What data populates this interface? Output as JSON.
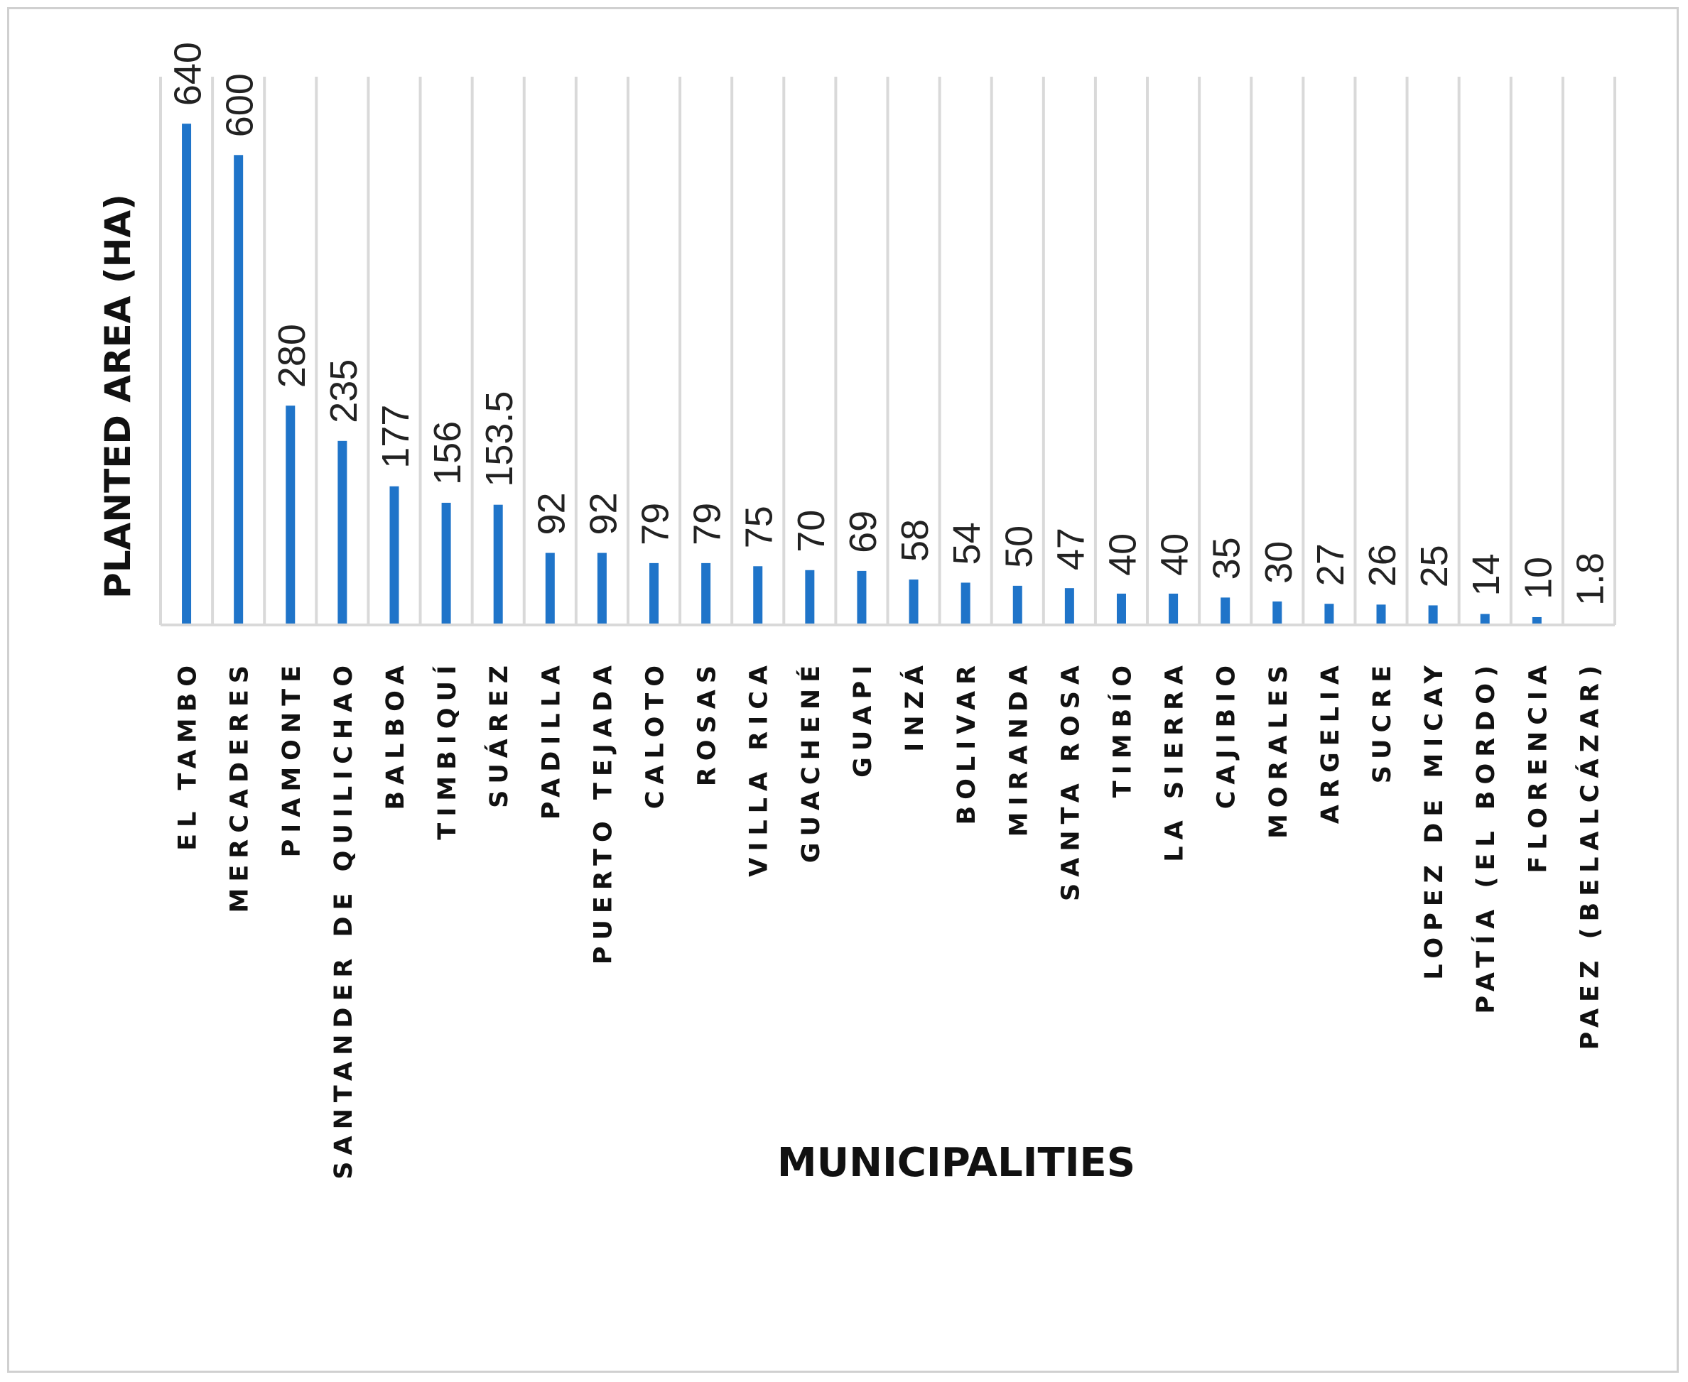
{
  "chart_data": {
    "type": "bar",
    "ylabel": "PLANTED AREA (HA)",
    "xlabel": "MUNICIPALITIES",
    "ylim": [
      0,
      700
    ],
    "grid": true,
    "bar_color": "#1f74c9",
    "grid_color": "#d9d9d9",
    "categories": [
      "EL TAMBO",
      "MERCADERES",
      "PIAMONTE",
      "SANTANDER DE QUILICHAO",
      "BALBOA",
      "TIMBIQUÍ",
      "SUÁREZ",
      "PADILLA",
      "PUERTO TEJADA",
      "CALOTO",
      "ROSAS",
      "VILLA RICA",
      "GUACHENÉ",
      "GUAPI",
      "INZÁ",
      "BOLIVAR",
      "MIRANDA",
      "SANTA ROSA",
      "TIMBÍO",
      "LA SIERRA",
      "CAJIBIO",
      "MORALES",
      "ARGELIA",
      "SUCRE",
      "LOPEZ DE MICAY",
      "PATÍA (EL BORDO)",
      "FLORENCIA",
      "PAEZ (BELALCÁZAR)"
    ],
    "values": [
      640,
      600,
      280,
      235,
      177,
      156,
      153.5,
      92,
      92,
      79,
      79,
      75,
      70,
      69,
      58,
      54,
      50,
      47,
      40,
      40,
      35,
      30,
      27,
      26,
      25,
      14,
      10,
      1.8
    ],
    "labels": [
      "640",
      "600",
      "280",
      "235",
      "177",
      "156",
      "153.5",
      "92",
      "92",
      "79",
      "79",
      "75",
      "70",
      "69",
      "58",
      "54",
      "50",
      "47",
      "40",
      "40",
      "35",
      "30",
      "27",
      "26",
      "25",
      "14",
      "10",
      "1.8"
    ]
  }
}
